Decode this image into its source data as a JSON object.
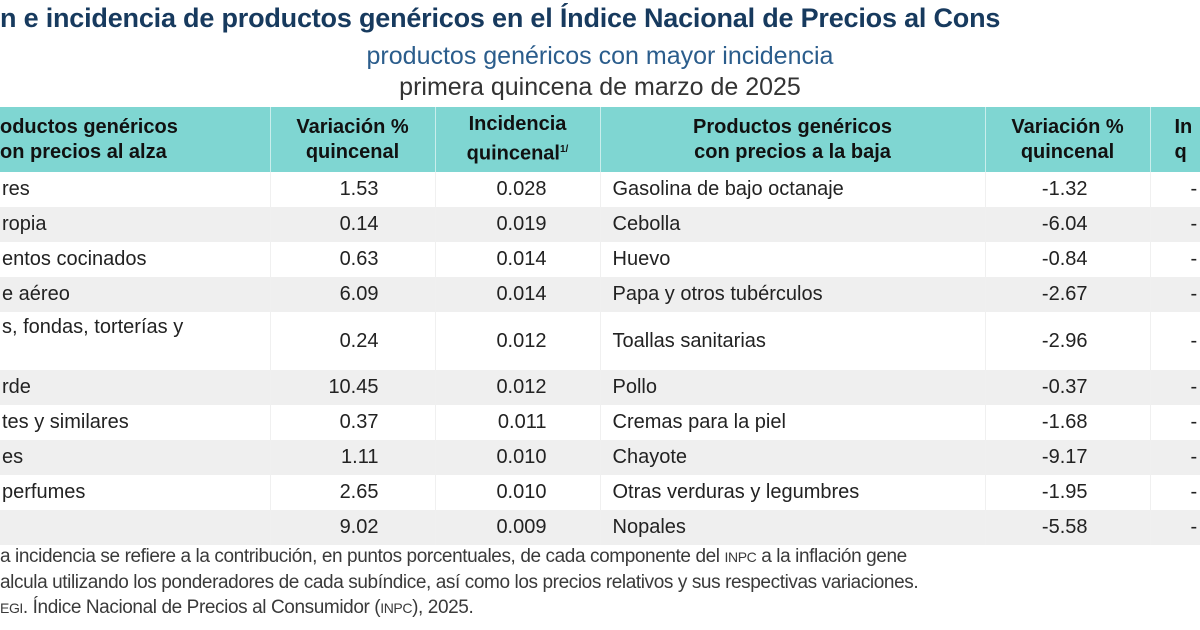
{
  "title": "n e incidencia de productos genéricos en el Índice Nacional de Precios al Cons",
  "subtitle": "productos genéricos con mayor incidencia",
  "period": "primera quincena de marzo de 2025",
  "headers": {
    "up_products": [
      "oductos genéricos",
      "on precios al alza"
    ],
    "up_variation": [
      "Variación %",
      "quincenal"
    ],
    "up_incidence": [
      "Incidencia",
      "quincenal",
      "1/"
    ],
    "down_products": [
      "Productos genéricos",
      "con precios a la baja"
    ],
    "down_variation": [
      "Variación %",
      "quincenal"
    ],
    "down_incidence": [
      "In",
      "q"
    ]
  },
  "rows": [
    {
      "up_name": "res",
      "up_var": "1.53",
      "up_inc": "0.028",
      "down_name": "Gasolina de bajo octanaje",
      "down_var": "-1.32",
      "down_inc": "-"
    },
    {
      "up_name": "ropia",
      "up_var": "0.14",
      "up_inc": "0.019",
      "down_name": "Cebolla",
      "down_var": "-6.04",
      "down_inc": "-"
    },
    {
      "up_name": "entos cocinados",
      "up_var": "0.63",
      "up_inc": "0.014",
      "down_name": "Huevo",
      "down_var": "-0.84",
      "down_inc": "-"
    },
    {
      "up_name": "e aéreo",
      "up_var": "6.09",
      "up_inc": "0.014",
      "down_name": "Papa y otros tubérculos",
      "down_var": "-2.67",
      "down_inc": "-"
    },
    {
      "up_name": "s, fondas, torterías y",
      "up_var": "0.24",
      "up_inc": "0.012",
      "down_name": "Toallas sanitarias",
      "down_var": "-2.96",
      "down_inc": "-"
    },
    {
      "up_name": "rde",
      "up_var": "10.45",
      "up_inc": "0.012",
      "down_name": "Pollo",
      "down_var": "-0.37",
      "down_inc": "-"
    },
    {
      "up_name": "tes y similares",
      "up_var": "0.37",
      "up_inc": "0.011",
      "down_name": "Cremas para la piel",
      "down_var": "-1.68",
      "down_inc": "-"
    },
    {
      "up_name": "es",
      "up_var": "1.11",
      "up_inc": "0.010",
      "down_name": "Chayote",
      "down_var": "-9.17",
      "down_inc": "-"
    },
    {
      "up_name": "perfumes",
      "up_var": "2.65",
      "up_inc": "0.010",
      "down_name": "Otras verduras y legumbres",
      "down_var": "-1.95",
      "down_inc": "-"
    },
    {
      "up_name": "",
      "up_var": "9.02",
      "up_inc": "0.009",
      "down_name": "Nopales",
      "down_var": "-5.58",
      "down_inc": "-"
    }
  ],
  "footnotes": {
    "line1_a": "a incidencia se refiere a la contribución, en puntos porcentuales, de cada componente del ",
    "line1_abbr": "INPC",
    "line1_b": " a la inflación gene",
    "line2": "alcula utilizando los ponderadores de cada subíndice, así como los precios relativos y sus respectivas variaciones.",
    "line3_a": "EGI",
    "line3_b": ". Índice Nacional de Precios al Consumidor (",
    "line3_abbr": "INPC",
    "line3_c": "), 2025."
  }
}
